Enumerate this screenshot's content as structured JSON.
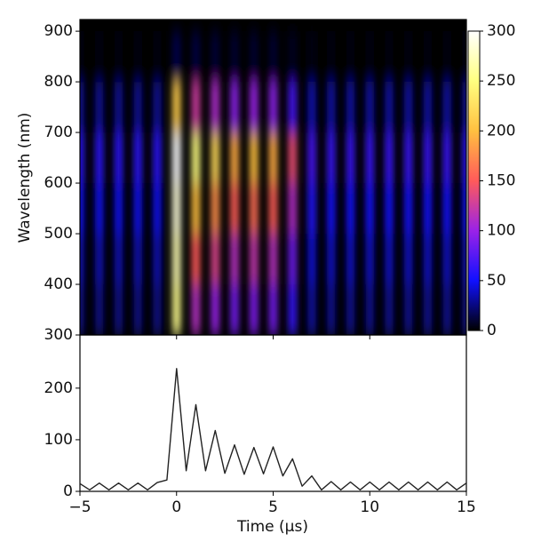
{
  "chart_data": [
    {
      "type": "heatmap",
      "ylabel": "Wavelength (nm)",
      "x": [
        -5,
        -4,
        -3,
        -2,
        -1,
        0,
        1,
        2,
        3,
        4,
        5,
        6,
        7,
        8,
        9,
        10,
        11,
        12,
        13,
        14,
        15
      ],
      "y": [
        350,
        450,
        550,
        650,
        750,
        850
      ],
      "z": [
        [
          27,
          27,
          27,
          27,
          27,
          255,
          113,
          99,
          86,
          90,
          86,
          63,
          32,
          29,
          29,
          29,
          29,
          29,
          29,
          29,
          27
        ],
        [
          36,
          36,
          36,
          36,
          36,
          270,
          150,
          132,
          114,
          120,
          114,
          84,
          42,
          39,
          39,
          39,
          39,
          39,
          39,
          39,
          36
        ],
        [
          48,
          48,
          48,
          48,
          48,
          285,
          200,
          176,
          152,
          160,
          152,
          112,
          56,
          52,
          52,
          52,
          52,
          52,
          52,
          52,
          48
        ],
        [
          60,
          60,
          60,
          60,
          60,
          300,
          250,
          220,
          190,
          200,
          190,
          140,
          70,
          65,
          65,
          65,
          65,
          65,
          65,
          65,
          60
        ],
        [
          30,
          30,
          30,
          30,
          30,
          210,
          125,
          110,
          95,
          100,
          95,
          70,
          35,
          33,
          33,
          33,
          33,
          33,
          33,
          33,
          30
        ],
        [
          3,
          3,
          3,
          3,
          3,
          15,
          13,
          11,
          10,
          10,
          10,
          7,
          4,
          3,
          3,
          3,
          3,
          3,
          3,
          3,
          3
        ]
      ],
      "xlim": [
        -5,
        15
      ],
      "xticks": [
        -5,
        0,
        5,
        10,
        15
      ],
      "ylim": [
        300,
        923
      ],
      "yticks": [
        300,
        400,
        500,
        600,
        700,
        800,
        900
      ],
      "zlim": [
        0,
        300
      ],
      "zticks": [
        0,
        50,
        100,
        150,
        200,
        250,
        300
      ],
      "colormap": [
        "#000000",
        "#1010ff",
        "#9a22e8",
        "#ff5a5a",
        "#ffc040",
        "#ffff80",
        "#ffffff"
      ]
    },
    {
      "type": "line",
      "xlabel": "Time (μs)",
      "x": [
        -5,
        -4.5,
        -4,
        -3.5,
        -3,
        -2.5,
        -2,
        -1.5,
        -1,
        -0.5,
        0,
        0.5,
        1,
        1.5,
        2,
        2.5,
        3,
        3.5,
        4,
        4.5,
        5,
        5.5,
        6,
        6.5,
        7,
        7.5,
        8,
        8.5,
        9,
        9.5,
        10,
        10.5,
        11,
        11.5,
        12,
        12.5,
        13,
        13.5,
        14,
        14.5,
        15
      ],
      "series": [
        {
          "color": "#222222",
          "values": [
            15,
            3,
            16,
            3,
            16,
            3,
            16,
            3,
            17,
            22,
            238,
            40,
            168,
            40,
            118,
            35,
            90,
            33,
            85,
            34,
            86,
            30,
            63,
            10,
            30,
            3,
            19,
            3,
            18,
            3,
            18,
            3,
            18,
            3,
            18,
            3,
            18,
            3,
            18,
            3,
            16
          ]
        }
      ],
      "xlim": [
        -5,
        15
      ],
      "xticks": [
        {
          "value": -5,
          "label": "−5"
        },
        0,
        5,
        10,
        15
      ],
      "ylim": [
        0,
        303
      ],
      "yticks": [
        0,
        100,
        200
      ]
    }
  ]
}
